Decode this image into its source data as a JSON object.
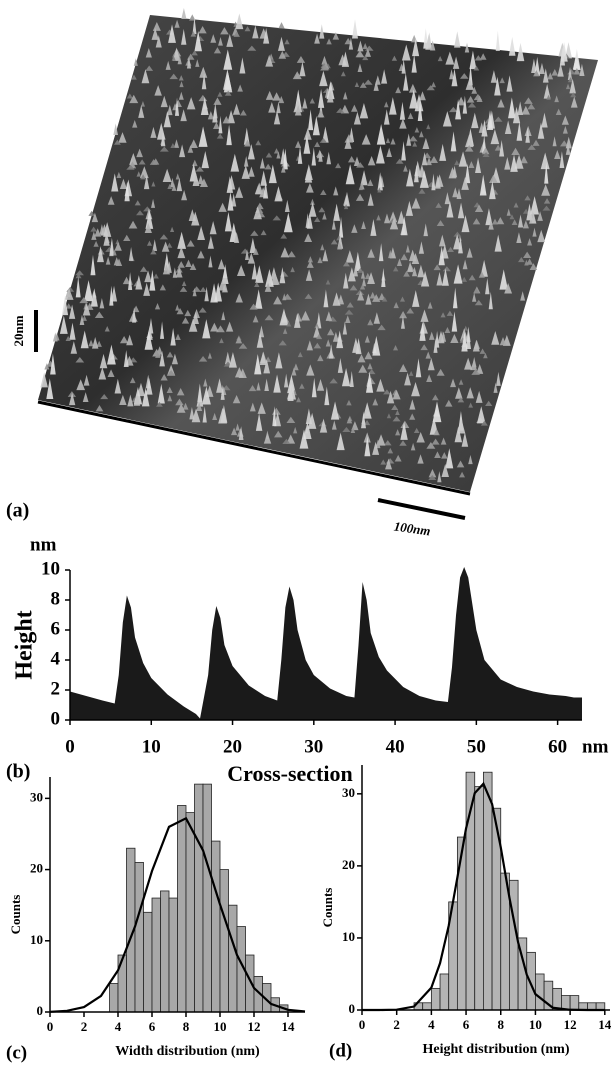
{
  "panel_a": {
    "label": "(a)",
    "scale_vertical": "20nm",
    "scale_horizontal": "100nm"
  },
  "chart_data": [
    {
      "type": "area",
      "panel_label": "(b)",
      "y_label": "Height",
      "y_unit": "nm",
      "x_label": "Cross-section",
      "x_unit": "nm",
      "color": "#1a1a1a",
      "x": [
        0,
        2,
        4,
        5.5,
        6,
        6.5,
        7,
        7.5,
        8,
        9,
        10,
        12,
        14,
        15.5,
        16,
        17,
        17.5,
        18,
        18.5,
        19,
        20,
        22,
        24,
        25.5,
        26,
        26.5,
        27,
        27.5,
        28,
        29,
        30,
        32,
        34,
        35,
        35.5,
        36,
        36.5,
        37,
        38,
        39,
        41,
        43,
        45,
        46.5,
        47,
        47.5,
        48,
        48.5,
        49,
        50,
        51,
        53,
        55,
        57,
        59,
        61,
        62,
        63
      ],
      "values": [
        1.9,
        1.6,
        1.3,
        1.1,
        3.0,
        6.5,
        8.3,
        7.5,
        5.5,
        3.8,
        2.8,
        1.7,
        0.9,
        0.4,
        0.1,
        3.0,
        6.0,
        7.6,
        6.8,
        5.0,
        3.6,
        2.3,
        1.6,
        1.3,
        4.0,
        7.5,
        8.9,
        8.0,
        6.0,
        4.0,
        3.0,
        2.1,
        1.6,
        1.5,
        5.0,
        9.2,
        8.0,
        5.8,
        4.2,
        3.3,
        2.2,
        1.6,
        1.3,
        1.2,
        3.5,
        7.0,
        9.5,
        10.2,
        9.5,
        6.0,
        4.0,
        2.7,
        2.2,
        1.9,
        1.7,
        1.6,
        1.5,
        1.5
      ],
      "xlim": [
        0,
        63
      ],
      "ylim": [
        0,
        10
      ],
      "xticks": [
        0,
        10,
        20,
        30,
        40,
        50,
        60
      ],
      "yticks": [
        0,
        2,
        4,
        6,
        8,
        10
      ]
    },
    {
      "type": "histogram",
      "panel_label": "(c)",
      "y_label": "Counts",
      "x_label": "Width distribution (nm)",
      "color": "#a8a8a8",
      "bins": [
        3.5,
        4,
        4.5,
        5,
        5.5,
        6,
        6.5,
        7,
        7.5,
        8,
        8.5,
        9,
        9.5,
        10,
        10.5,
        11,
        11.5,
        12,
        12.5,
        13,
        13.5,
        14
      ],
      "counts": [
        4,
        8,
        23,
        21,
        14,
        16,
        17,
        16,
        29,
        28,
        32,
        32,
        24,
        20,
        15,
        12,
        8,
        5,
        4,
        2,
        1
      ],
      "fit": {
        "x": [
          0,
          1,
          2,
          3,
          4,
          5,
          6,
          7,
          8,
          9,
          10,
          11,
          12,
          13,
          14,
          15
        ],
        "values": [
          0.03,
          0.17,
          0.69,
          2.26,
          5.84,
          12.0,
          19.8,
          26.0,
          27.2,
          22.7,
          15.1,
          8.0,
          3.37,
          1.14,
          0.31,
          0.07
        ]
      },
      "xlim": [
        0,
        15
      ],
      "ylim": [
        0,
        33
      ],
      "xticks": [
        0,
        2,
        4,
        6,
        8,
        10,
        12,
        14
      ],
      "yticks": [
        0,
        10,
        20,
        30
      ]
    },
    {
      "type": "histogram",
      "panel_label": "(d)",
      "y_label": "Counts",
      "x_label": "Height distribution (nm)",
      "color": "#b4b4b4",
      "bins": [
        3,
        3.5,
        4,
        4.5,
        5,
        5.5,
        6,
        6.5,
        7,
        7.5,
        8,
        8.5,
        9,
        9.5,
        10,
        10.5,
        11,
        11.5,
        12,
        12.5,
        13,
        13.5,
        14
      ],
      "counts": [
        1,
        1,
        3,
        5,
        15,
        24,
        33,
        31,
        33,
        28,
        19,
        18,
        10,
        8,
        5,
        4,
        3,
        2,
        2,
        1,
        1,
        1
      ],
      "fit": {
        "x": [
          0,
          1,
          2,
          3,
          4,
          4.5,
          5,
          5.5,
          6,
          6.5,
          7,
          7.5,
          8,
          8.5,
          9,
          9.5,
          10,
          11,
          12,
          13,
          14
        ],
        "values": [
          0,
          0,
          0.04,
          0.48,
          3.1,
          6.5,
          11.7,
          18.4,
          25.2,
          30.1,
          31.4,
          28.6,
          22.6,
          15.6,
          9.4,
          4.9,
          2.2,
          0.31,
          0.03,
          0,
          0
        ]
      },
      "xlim": [
        0,
        14.3
      ],
      "ylim": [
        0,
        34
      ],
      "xticks": [
        0,
        2,
        4,
        6,
        8,
        10,
        12,
        14
      ],
      "yticks": [
        0,
        10,
        20,
        30
      ]
    }
  ]
}
